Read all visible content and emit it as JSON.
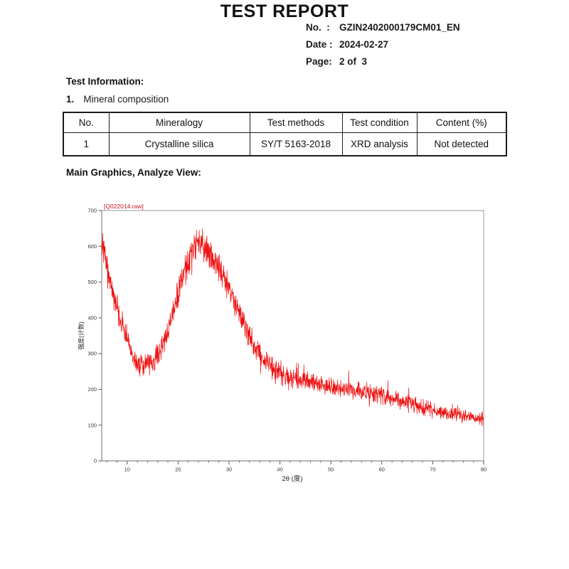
{
  "page": {
    "title": "TEST REPORT"
  },
  "meta": {
    "no_label": "No.  :",
    "no_value": "GZIN2402000179CM01_EN",
    "date_label": "Date :",
    "date_value": "2024-02-27",
    "page_label": "Page:",
    "page_value": "2 of  3"
  },
  "sections": {
    "test_information": "Test Information:",
    "item_number": "1.",
    "item_title": "Mineral composition",
    "graphics": "Main Graphics, Analyze View:"
  },
  "table": {
    "headers": [
      "No.",
      "Mineralogy",
      "Test methods",
      "Test condition",
      "Content (%)"
    ],
    "rows": [
      [
        "1",
        "Crystalline silica",
        "SY/T 5163-2018",
        "XRD analysis",
        "Not detected"
      ]
    ]
  },
  "chart_data": {
    "type": "line",
    "title": "[Q022014.raw]",
    "xlabel": "2θ (度)",
    "ylabel": "强度(计数)",
    "xlim": [
      5,
      80
    ],
    "ylim": [
      0,
      700
    ],
    "x_major_ticks": [
      10,
      20,
      30,
      40,
      50,
      60,
      70,
      80
    ],
    "x_minor_step": 2,
    "y_major_ticks": [
      0,
      100,
      200,
      300,
      400,
      500,
      600,
      700
    ],
    "grid": false,
    "legend": "none",
    "line_color": "#ee1111",
    "frame_color": "#949494",
    "tick_color": "#555555",
    "label_color": "#333333",
    "series": [
      {
        "name": "Q022014.raw",
        "description": "Amorphous XRD pattern: high start ~620 counts at 5°, valley ~265 at 12.5°, broad halo peak ~600 (spikes to ~670) at 23.5°, declining noisy tail to ~120 at 80°",
        "baseline": [
          [
            5,
            622
          ],
          [
            5.5,
            585
          ],
          [
            6,
            540
          ],
          [
            6.5,
            505
          ],
          [
            7,
            472
          ],
          [
            7.5,
            448
          ],
          [
            8,
            425
          ],
          [
            9,
            385
          ],
          [
            10,
            338
          ],
          [
            11,
            298
          ],
          [
            12,
            272
          ],
          [
            13,
            264
          ],
          [
            14,
            267
          ],
          [
            15,
            277
          ],
          [
            16,
            294
          ],
          [
            17,
            325
          ],
          [
            18,
            368
          ],
          [
            19,
            418
          ],
          [
            20,
            468
          ],
          [
            21,
            518
          ],
          [
            22,
            560
          ],
          [
            23,
            590
          ],
          [
            23.5,
            600
          ],
          [
            24,
            602
          ],
          [
            25,
            596
          ],
          [
            26,
            580
          ],
          [
            27,
            558
          ],
          [
            28,
            534
          ],
          [
            29,
            506
          ],
          [
            30,
            476
          ],
          [
            31,
            446
          ],
          [
            32,
            415
          ],
          [
            33,
            385
          ],
          [
            34,
            352
          ],
          [
            35,
            322
          ],
          [
            36,
            300
          ],
          [
            37,
            284
          ],
          [
            38,
            268
          ],
          [
            39,
            254
          ],
          [
            40,
            244
          ],
          [
            41,
            237
          ],
          [
            42,
            233
          ],
          [
            43,
            231
          ],
          [
            44,
            230
          ],
          [
            45,
            229
          ],
          [
            46,
            225
          ],
          [
            47,
            220
          ],
          [
            48,
            214
          ],
          [
            49,
            209
          ],
          [
            50,
            206
          ],
          [
            51,
            204
          ],
          [
            52,
            202
          ],
          [
            53,
            201
          ],
          [
            54,
            199
          ],
          [
            55,
            198
          ],
          [
            56,
            195
          ],
          [
            57,
            192
          ],
          [
            58,
            189
          ],
          [
            59,
            186
          ],
          [
            60,
            182
          ],
          [
            61,
            178
          ],
          [
            62,
            174
          ],
          [
            63,
            170
          ],
          [
            64,
            166
          ],
          [
            65,
            162
          ],
          [
            66,
            157
          ],
          [
            67,
            153
          ],
          [
            68,
            149
          ],
          [
            69,
            145
          ],
          [
            70,
            142
          ],
          [
            71,
            138
          ],
          [
            72,
            135
          ],
          [
            73,
            132
          ],
          [
            74,
            129
          ],
          [
            75,
            127
          ],
          [
            76,
            125
          ],
          [
            77,
            123
          ],
          [
            78,
            121
          ],
          [
            79,
            119
          ],
          [
            80,
            117
          ]
        ],
        "noise_scale": 2.2,
        "sample_step": 0.05
      }
    ]
  }
}
